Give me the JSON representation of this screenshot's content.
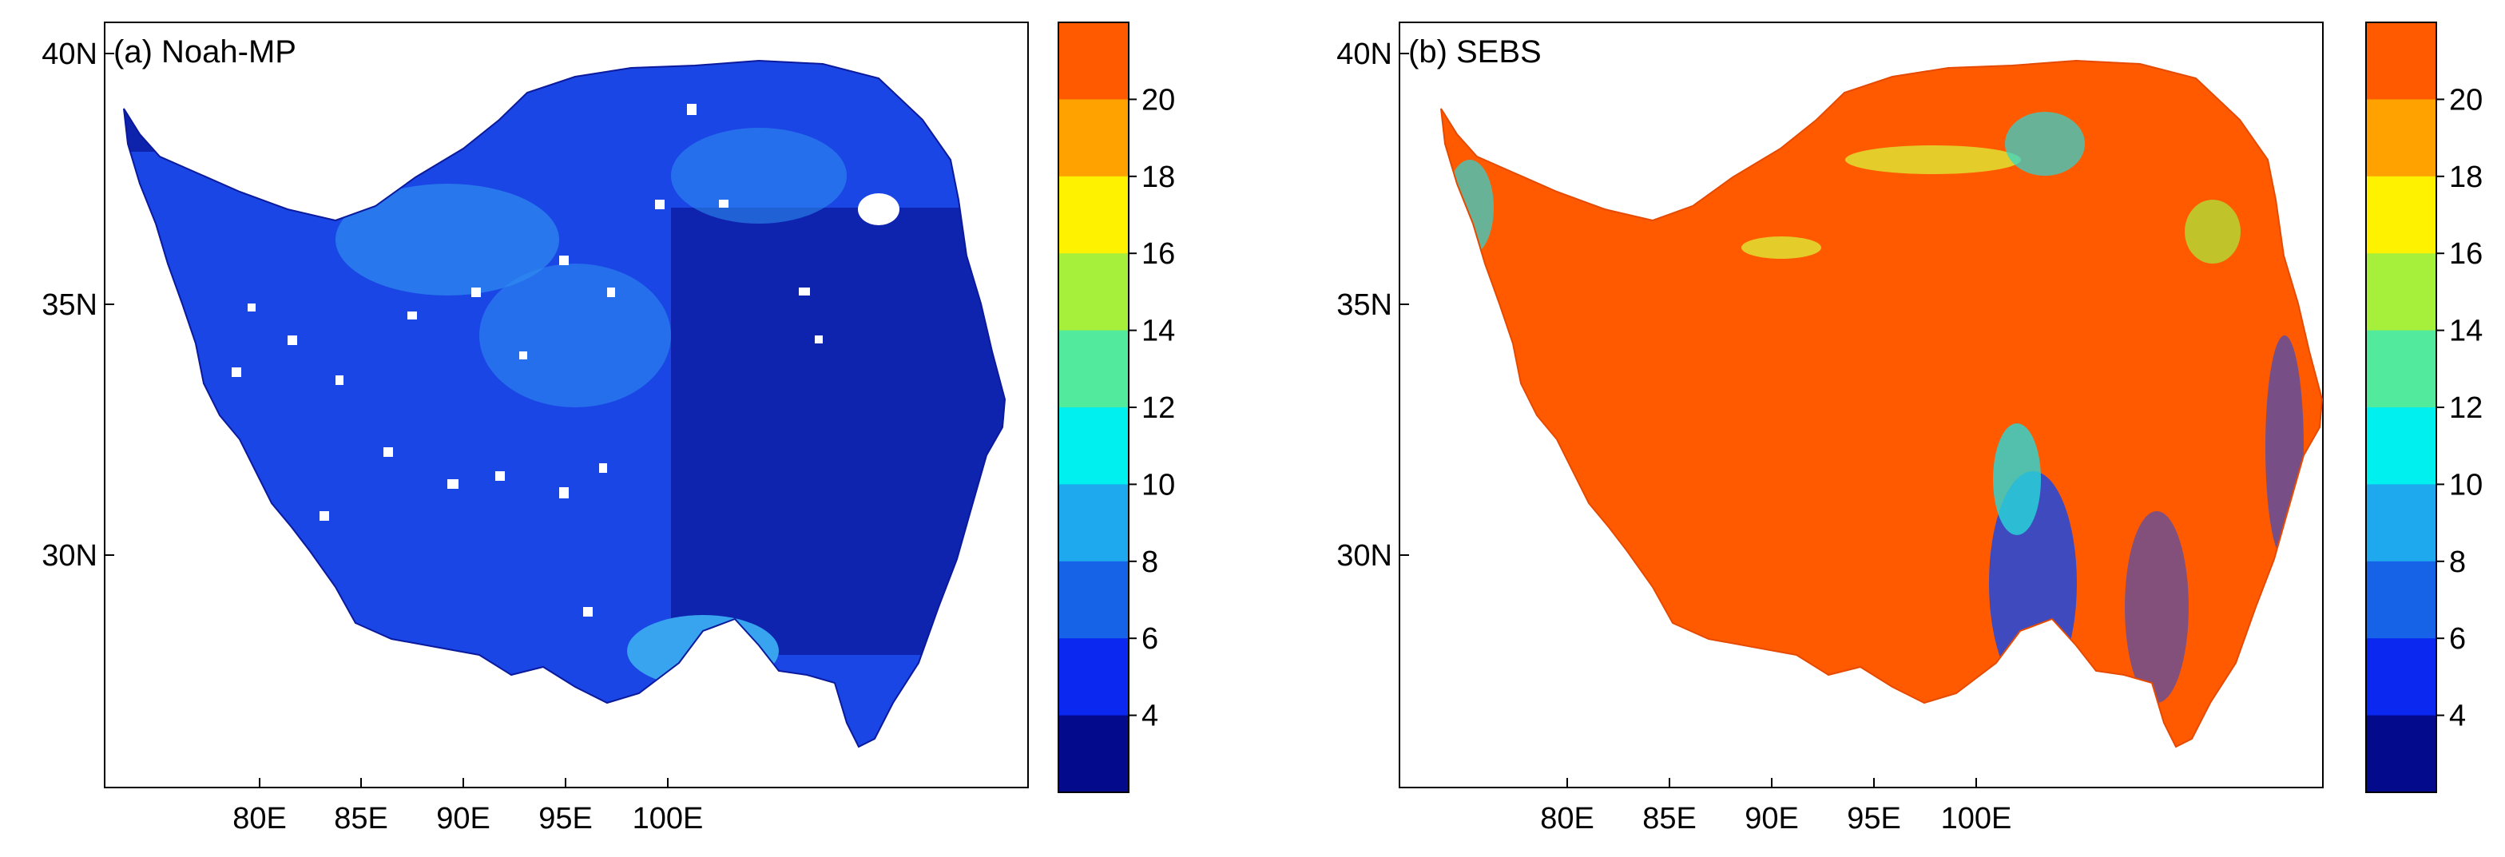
{
  "panels": [
    {
      "id": "a",
      "title": "(a) Noah-MP",
      "fill_color": "#1a46e6",
      "x_ticks": [
        "80E",
        "85E",
        "90E",
        "95E",
        "100E"
      ],
      "y_ticks": [
        "40N",
        "35N",
        "30N"
      ]
    },
    {
      "id": "b",
      "title": "(b) SEBS",
      "fill_color": "#ff5a00",
      "x_ticks": [
        "80E",
        "85E",
        "90E",
        "95E",
        "100E"
      ],
      "y_ticks": [
        "40N",
        "35N",
        "30N"
      ]
    }
  ],
  "colorbar": {
    "labels": [
      "20",
      "18",
      "16",
      "14",
      "12",
      "10",
      "8",
      "6",
      "4"
    ],
    "colors": [
      "#ff5a00",
      "#ffa200",
      "#fff200",
      "#a6f03c",
      "#52eb9e",
      "#00f0f0",
      "#1ea8ee",
      "#1763e8",
      "#0a28f0",
      "#040a8c"
    ]
  },
  "colors": {
    "noah_dark": "#0b1a9c",
    "noah_light": "#38a4f0",
    "sebs_blue": "#1d48e0",
    "sebs_cyan": "#28d8d8",
    "sebs_yellow": "#dde835"
  }
}
